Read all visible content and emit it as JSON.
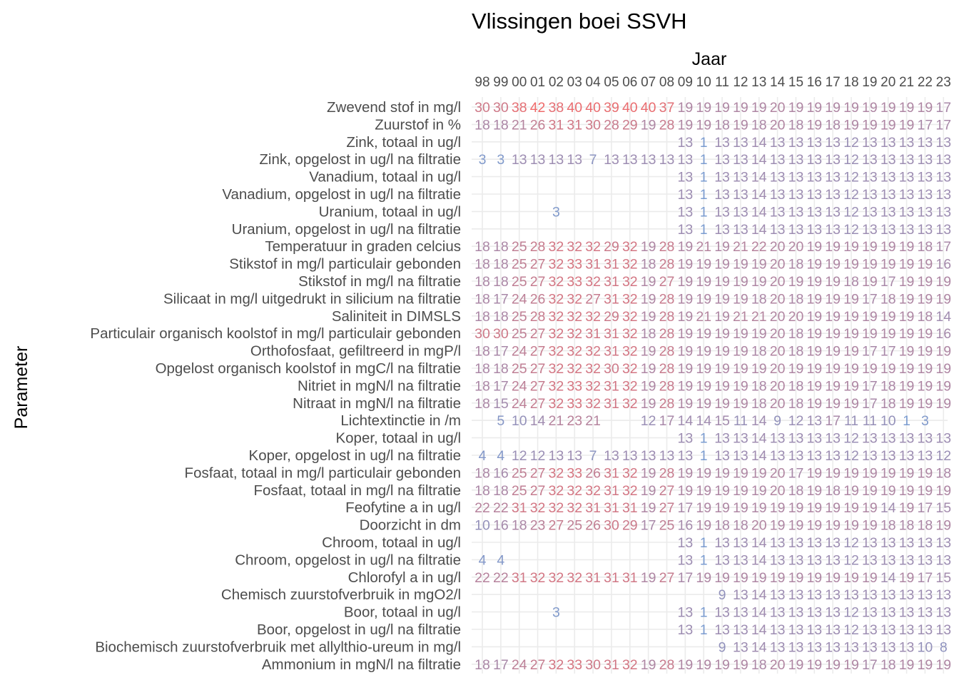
{
  "chart_data": {
    "type": "heatmap",
    "title": "Vlissingen boei SSVH",
    "xlabel": "Jaar",
    "ylabel": "Parameter",
    "x_ticks": [
      "98",
      "99",
      "00",
      "01",
      "02",
      "03",
      "04",
      "05",
      "06",
      "07",
      "08",
      "09",
      "10",
      "11",
      "12",
      "13",
      "14",
      "15",
      "16",
      "17",
      "18",
      "19",
      "20",
      "21",
      "22",
      "23"
    ],
    "grid": true,
    "color_scale": {
      "low": "#7b9cd0",
      "high": "#ef6a6a",
      "min": 1,
      "max": 42
    },
    "rows": [
      {
        "name": "Zwevend stof in mg/l",
        "values": [
          30,
          30,
          38,
          42,
          38,
          40,
          40,
          39,
          40,
          40,
          37,
          19,
          19,
          19,
          19,
          19,
          20,
          19,
          19,
          19,
          19,
          19,
          19,
          19,
          19,
          17
        ]
      },
      {
        "name": "Zuurstof in %",
        "values": [
          18,
          18,
          21,
          26,
          31,
          31,
          30,
          28,
          29,
          19,
          28,
          19,
          19,
          18,
          19,
          18,
          20,
          18,
          19,
          18,
          19,
          19,
          19,
          19,
          17,
          17
        ]
      },
      {
        "name": "Zink, totaal in ug/l",
        "values": [
          null,
          null,
          null,
          null,
          null,
          null,
          null,
          null,
          null,
          null,
          null,
          13,
          1,
          13,
          13,
          14,
          13,
          13,
          13,
          13,
          12,
          13,
          13,
          13,
          13,
          13
        ]
      },
      {
        "name": "Zink, opgelost in ug/l na filtratie",
        "values": [
          3,
          3,
          13,
          13,
          13,
          13,
          7,
          13,
          13,
          13,
          13,
          13,
          1,
          13,
          13,
          14,
          13,
          13,
          13,
          13,
          12,
          13,
          13,
          13,
          13,
          13
        ]
      },
      {
        "name": "Vanadium, totaal in ug/l",
        "values": [
          null,
          null,
          null,
          null,
          null,
          null,
          null,
          null,
          null,
          null,
          null,
          13,
          1,
          13,
          13,
          14,
          13,
          13,
          13,
          13,
          12,
          13,
          13,
          13,
          13,
          13
        ]
      },
      {
        "name": "Vanadium, opgelost in ug/l na filtratie",
        "values": [
          null,
          null,
          null,
          null,
          null,
          null,
          null,
          null,
          null,
          null,
          null,
          13,
          1,
          13,
          13,
          14,
          13,
          13,
          13,
          13,
          12,
          13,
          13,
          13,
          13,
          13
        ]
      },
      {
        "name": "Uranium, totaal in ug/l",
        "values": [
          null,
          null,
          null,
          null,
          3,
          null,
          null,
          null,
          null,
          null,
          null,
          13,
          1,
          13,
          13,
          14,
          13,
          13,
          13,
          13,
          12,
          13,
          13,
          13,
          13,
          13
        ]
      },
      {
        "name": "Uranium, opgelost in ug/l na filtratie",
        "values": [
          null,
          null,
          null,
          null,
          null,
          null,
          null,
          null,
          null,
          null,
          null,
          13,
          1,
          13,
          13,
          14,
          13,
          13,
          13,
          13,
          12,
          13,
          13,
          13,
          13,
          13
        ]
      },
      {
        "name": "Temperatuur in graden celcius",
        "values": [
          18,
          18,
          25,
          28,
          32,
          32,
          32,
          29,
          32,
          19,
          28,
          19,
          21,
          19,
          21,
          22,
          20,
          20,
          19,
          19,
          19,
          19,
          19,
          19,
          18,
          17
        ]
      },
      {
        "name": "Stikstof in mg/l particulair gebonden",
        "values": [
          18,
          18,
          25,
          27,
          32,
          33,
          31,
          31,
          32,
          18,
          28,
          19,
          19,
          19,
          19,
          19,
          20,
          18,
          19,
          19,
          19,
          19,
          19,
          19,
          19,
          16
        ]
      },
      {
        "name": "Stikstof in mg/l na filtratie",
        "values": [
          18,
          18,
          25,
          27,
          32,
          33,
          32,
          31,
          32,
          19,
          27,
          19,
          19,
          19,
          19,
          19,
          20,
          19,
          19,
          19,
          18,
          19,
          17,
          19,
          19,
          19
        ]
      },
      {
        "name": "Silicaat in mg/l uitgedrukt in silicium na filtratie",
        "values": [
          18,
          17,
          24,
          26,
          32,
          32,
          27,
          31,
          32,
          19,
          28,
          19,
          19,
          19,
          19,
          18,
          20,
          18,
          19,
          19,
          19,
          17,
          18,
          19,
          19,
          19
        ]
      },
      {
        "name": "Saliniteit in DIMSLS",
        "values": [
          18,
          18,
          25,
          28,
          32,
          32,
          32,
          29,
          32,
          19,
          28,
          19,
          21,
          19,
          21,
          21,
          20,
          20,
          19,
          19,
          19,
          19,
          19,
          19,
          18,
          14
        ]
      },
      {
        "name": "Particulair organisch koolstof in mg/l particulair gebonden",
        "values": [
          30,
          30,
          25,
          27,
          32,
          32,
          31,
          31,
          32,
          18,
          28,
          19,
          19,
          19,
          19,
          19,
          20,
          18,
          19,
          19,
          19,
          19,
          19,
          19,
          19,
          16
        ]
      },
      {
        "name": "Orthofosfaat, gefiltreerd in mgP/l",
        "values": [
          18,
          17,
          24,
          27,
          32,
          32,
          32,
          31,
          32,
          19,
          28,
          19,
          19,
          19,
          19,
          18,
          20,
          18,
          19,
          19,
          19,
          17,
          17,
          19,
          19,
          19
        ]
      },
      {
        "name": "Opgelost organisch koolstof in mgC/l na filtratie",
        "values": [
          18,
          18,
          25,
          27,
          32,
          32,
          32,
          30,
          32,
          19,
          28,
          19,
          19,
          19,
          19,
          19,
          20,
          19,
          19,
          19,
          19,
          19,
          19,
          19,
          19,
          19
        ]
      },
      {
        "name": "Nitriet in mgN/l na filtratie",
        "values": [
          18,
          17,
          24,
          27,
          32,
          33,
          32,
          31,
          32,
          19,
          28,
          19,
          19,
          19,
          19,
          18,
          20,
          18,
          19,
          19,
          19,
          17,
          18,
          19,
          19,
          19
        ]
      },
      {
        "name": "Nitraat in mgN/l na filtratie",
        "values": [
          18,
          15,
          24,
          27,
          32,
          33,
          32,
          31,
          32,
          19,
          28,
          19,
          19,
          19,
          19,
          18,
          20,
          18,
          19,
          19,
          19,
          17,
          18,
          19,
          19,
          19
        ]
      },
      {
        "name": "Lichtextinctie in /m",
        "values": [
          null,
          5,
          10,
          14,
          21,
          23,
          21,
          null,
          null,
          12,
          17,
          14,
          14,
          15,
          11,
          14,
          9,
          12,
          13,
          17,
          11,
          11,
          10,
          1,
          3,
          null
        ]
      },
      {
        "name": "Koper, totaal in ug/l",
        "values": [
          null,
          null,
          null,
          null,
          null,
          null,
          null,
          null,
          null,
          null,
          null,
          13,
          1,
          13,
          13,
          14,
          13,
          13,
          13,
          13,
          12,
          13,
          13,
          13,
          13,
          13
        ]
      },
      {
        "name": "Koper, opgelost in ug/l na filtratie",
        "values": [
          4,
          4,
          12,
          12,
          13,
          13,
          7,
          13,
          13,
          13,
          13,
          13,
          1,
          13,
          13,
          14,
          13,
          13,
          13,
          13,
          12,
          13,
          13,
          13,
          13,
          12
        ]
      },
      {
        "name": "Fosfaat, totaal in mg/l particulair gebonden",
        "values": [
          18,
          16,
          25,
          27,
          32,
          33,
          26,
          31,
          32,
          19,
          28,
          19,
          19,
          19,
          19,
          19,
          20,
          17,
          19,
          19,
          19,
          19,
          19,
          19,
          19,
          18
        ]
      },
      {
        "name": "Fosfaat, totaal in mg/l na filtratie",
        "values": [
          18,
          18,
          25,
          27,
          32,
          32,
          32,
          31,
          32,
          19,
          27,
          19,
          19,
          19,
          19,
          19,
          20,
          18,
          19,
          18,
          19,
          19,
          19,
          19,
          19,
          19
        ]
      },
      {
        "name": "Feofytine a in ug/l",
        "values": [
          22,
          22,
          31,
          32,
          32,
          32,
          31,
          31,
          31,
          19,
          27,
          17,
          19,
          19,
          19,
          19,
          19,
          19,
          19,
          19,
          19,
          19,
          14,
          19,
          17,
          15
        ]
      },
      {
        "name": "Doorzicht in dm",
        "values": [
          10,
          16,
          18,
          23,
          27,
          25,
          26,
          30,
          29,
          17,
          25,
          16,
          19,
          18,
          18,
          20,
          19,
          19,
          19,
          19,
          19,
          19,
          18,
          18,
          18,
          19
        ]
      },
      {
        "name": "Chroom, totaal in ug/l",
        "values": [
          null,
          null,
          null,
          null,
          null,
          null,
          null,
          null,
          null,
          null,
          null,
          13,
          1,
          13,
          13,
          14,
          13,
          13,
          13,
          13,
          12,
          13,
          13,
          13,
          13,
          13
        ]
      },
      {
        "name": "Chroom, opgelost in ug/l na filtratie",
        "values": [
          4,
          4,
          null,
          null,
          null,
          null,
          null,
          null,
          null,
          null,
          null,
          13,
          1,
          13,
          13,
          14,
          13,
          13,
          13,
          13,
          12,
          13,
          13,
          13,
          13,
          13
        ]
      },
      {
        "name": "Chlorofyl a in ug/l",
        "values": [
          22,
          22,
          31,
          32,
          32,
          32,
          31,
          31,
          31,
          19,
          27,
          17,
          19,
          19,
          19,
          19,
          19,
          19,
          19,
          19,
          19,
          19,
          14,
          19,
          17,
          15
        ]
      },
      {
        "name": "Chemisch zuurstofverbruik in mgO2/l",
        "values": [
          null,
          null,
          null,
          null,
          null,
          null,
          null,
          null,
          null,
          null,
          null,
          null,
          null,
          9,
          13,
          14,
          13,
          13,
          13,
          13,
          13,
          13,
          13,
          13,
          13,
          13
        ]
      },
      {
        "name": "Boor, totaal in ug/l",
        "values": [
          null,
          null,
          null,
          null,
          3,
          null,
          null,
          null,
          null,
          null,
          null,
          13,
          1,
          13,
          13,
          14,
          13,
          13,
          13,
          13,
          12,
          13,
          13,
          13,
          13,
          13
        ]
      },
      {
        "name": "Boor, opgelost in ug/l na filtratie",
        "values": [
          null,
          null,
          null,
          null,
          null,
          null,
          null,
          null,
          null,
          null,
          null,
          13,
          1,
          13,
          13,
          14,
          13,
          13,
          13,
          13,
          12,
          13,
          13,
          13,
          13,
          13
        ]
      },
      {
        "name": "Biochemisch zuurstofverbruik met allylthio-ureum in mg/l",
        "values": [
          null,
          null,
          null,
          null,
          null,
          null,
          null,
          null,
          null,
          null,
          null,
          null,
          null,
          9,
          13,
          14,
          13,
          13,
          13,
          13,
          13,
          13,
          13,
          13,
          10,
          8
        ]
      },
      {
        "name": "Ammonium in mgN/l na filtratie",
        "values": [
          18,
          17,
          24,
          27,
          32,
          33,
          30,
          31,
          32,
          19,
          28,
          19,
          19,
          19,
          19,
          18,
          20,
          19,
          19,
          19,
          19,
          17,
          18,
          19,
          19,
          19
        ]
      }
    ]
  }
}
